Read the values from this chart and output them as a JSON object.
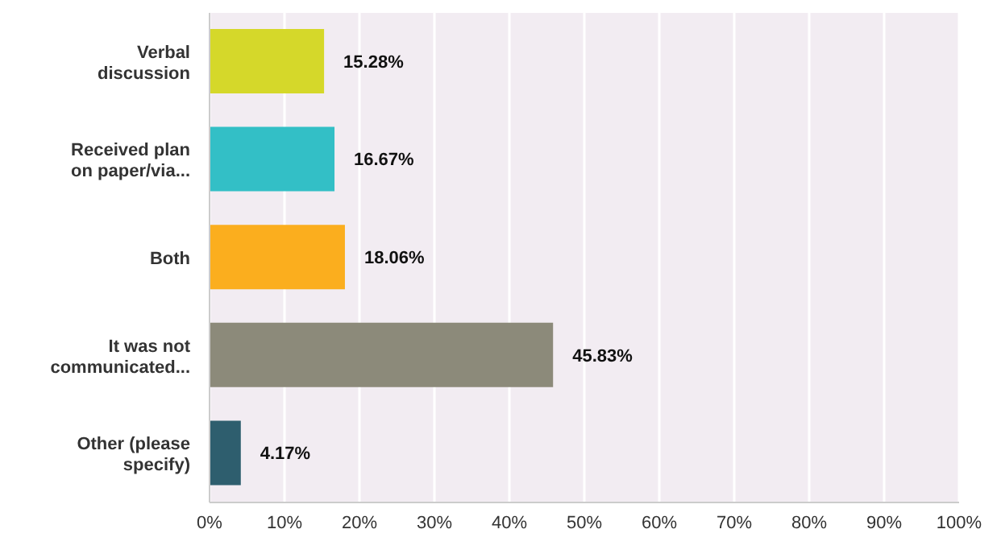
{
  "chart_data": {
    "type": "bar",
    "orientation": "horizontal",
    "categories": [
      "Verbal discussion",
      "Received plan on paper/via...",
      "Both",
      "It was not communicated...",
      "Other (please specify)"
    ],
    "values": [
      15.28,
      16.67,
      18.06,
      45.83,
      4.17
    ],
    "colors": [
      "#d5d82a",
      "#33bfc6",
      "#fbae1e",
      "#8c8a7a",
      "#2e5e6e"
    ],
    "value_labels": [
      "15.28%",
      "16.67%",
      "18.06%",
      "45.83%",
      "4.17%"
    ],
    "xlim": [
      0,
      100
    ],
    "xticks": [
      {
        "value": 0,
        "label": "0%"
      },
      {
        "value": 10,
        "label": "10%"
      },
      {
        "value": 20,
        "label": "20%"
      },
      {
        "value": 30,
        "label": "30%"
      },
      {
        "value": 40,
        "label": "40%"
      },
      {
        "value": 50,
        "label": "50%"
      },
      {
        "value": 60,
        "label": "60%"
      },
      {
        "value": 70,
        "label": "70%"
      },
      {
        "value": 80,
        "label": "80%"
      },
      {
        "value": 90,
        "label": "90%"
      },
      {
        "value": 100,
        "label": "100%"
      }
    ],
    "grid": "x",
    "legend": false
  }
}
